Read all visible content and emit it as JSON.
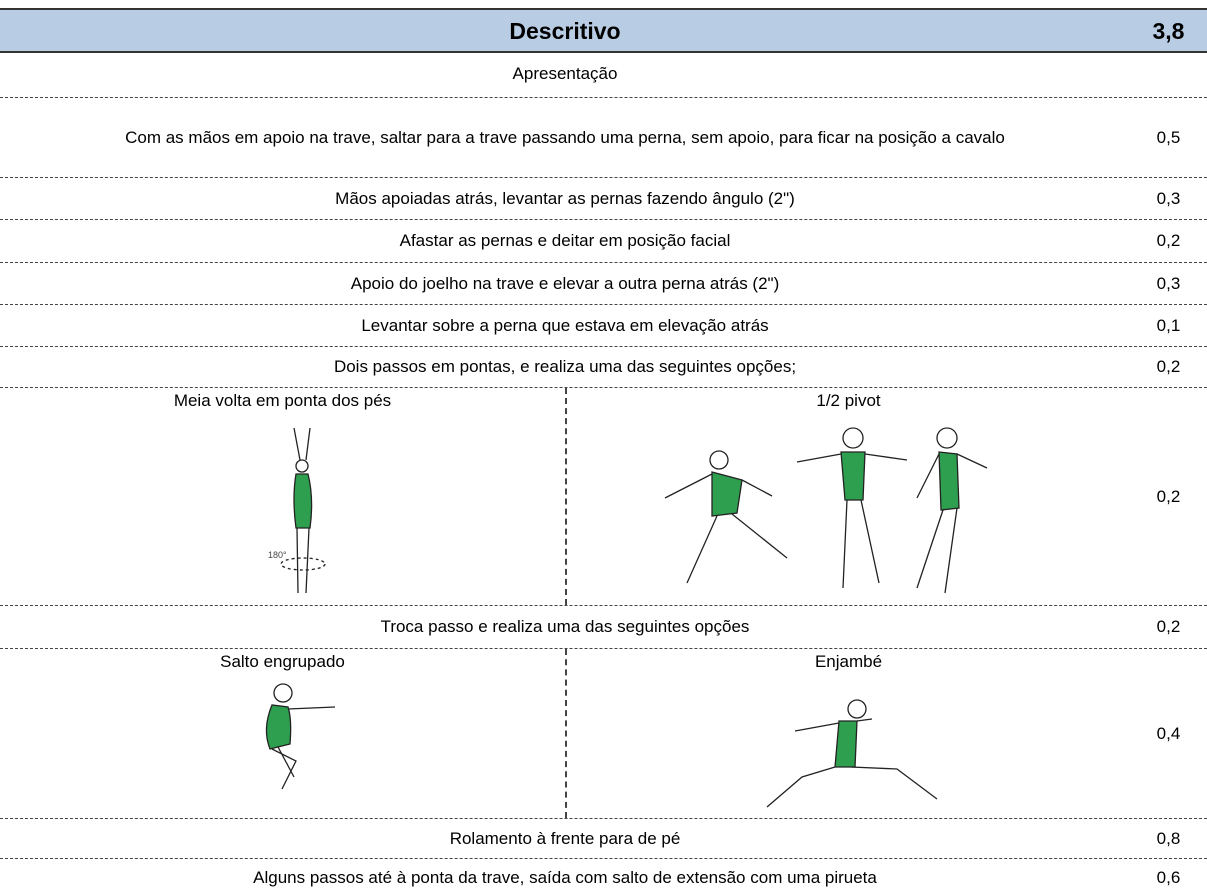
{
  "header": {
    "title": "Descritivo",
    "total": "3,8"
  },
  "section": "Apresentação",
  "rows": [
    {
      "text": "Com as mãos em apoio na trave, saltar para a trave passando uma perna, sem apoio, para ficar na posição a cavalo",
      "value": "0,5"
    },
    {
      "text": "Mãos apoiadas atrás, levantar as pernas fazendo ângulo  (2\")",
      "value": "0,3"
    },
    {
      "text": "Afastar as pernas e deitar em posição facial",
      "value": "0,2"
    },
    {
      "text": "Apoio do joelho na trave e elevar a outra perna atrás (2\")",
      "value": "0,3"
    },
    {
      "text": "Levantar sobre a perna que estava em elevação atrás",
      "value": "0,1"
    },
    {
      "text": "Dois passos em pontas, e realiza uma das seguintes opções;",
      "value": "0,2"
    },
    {
      "options": [
        "Meia volta em ponta dos pés",
        "1/2 pivot"
      ],
      "value": "0,2"
    },
    {
      "text": "Troca passo e realiza uma das seguintes opções",
      "value": "0,2"
    },
    {
      "options": [
        "Salto engrupado",
        "Enjambé"
      ],
      "value": "0,4"
    },
    {
      "text": "Rolamento à frente para de pé",
      "value": "0,8"
    },
    {
      "text": "Alguns passos até à ponta da trave, saída com salto de extensão com uma pirueta",
      "value": "0,6"
    }
  ]
}
